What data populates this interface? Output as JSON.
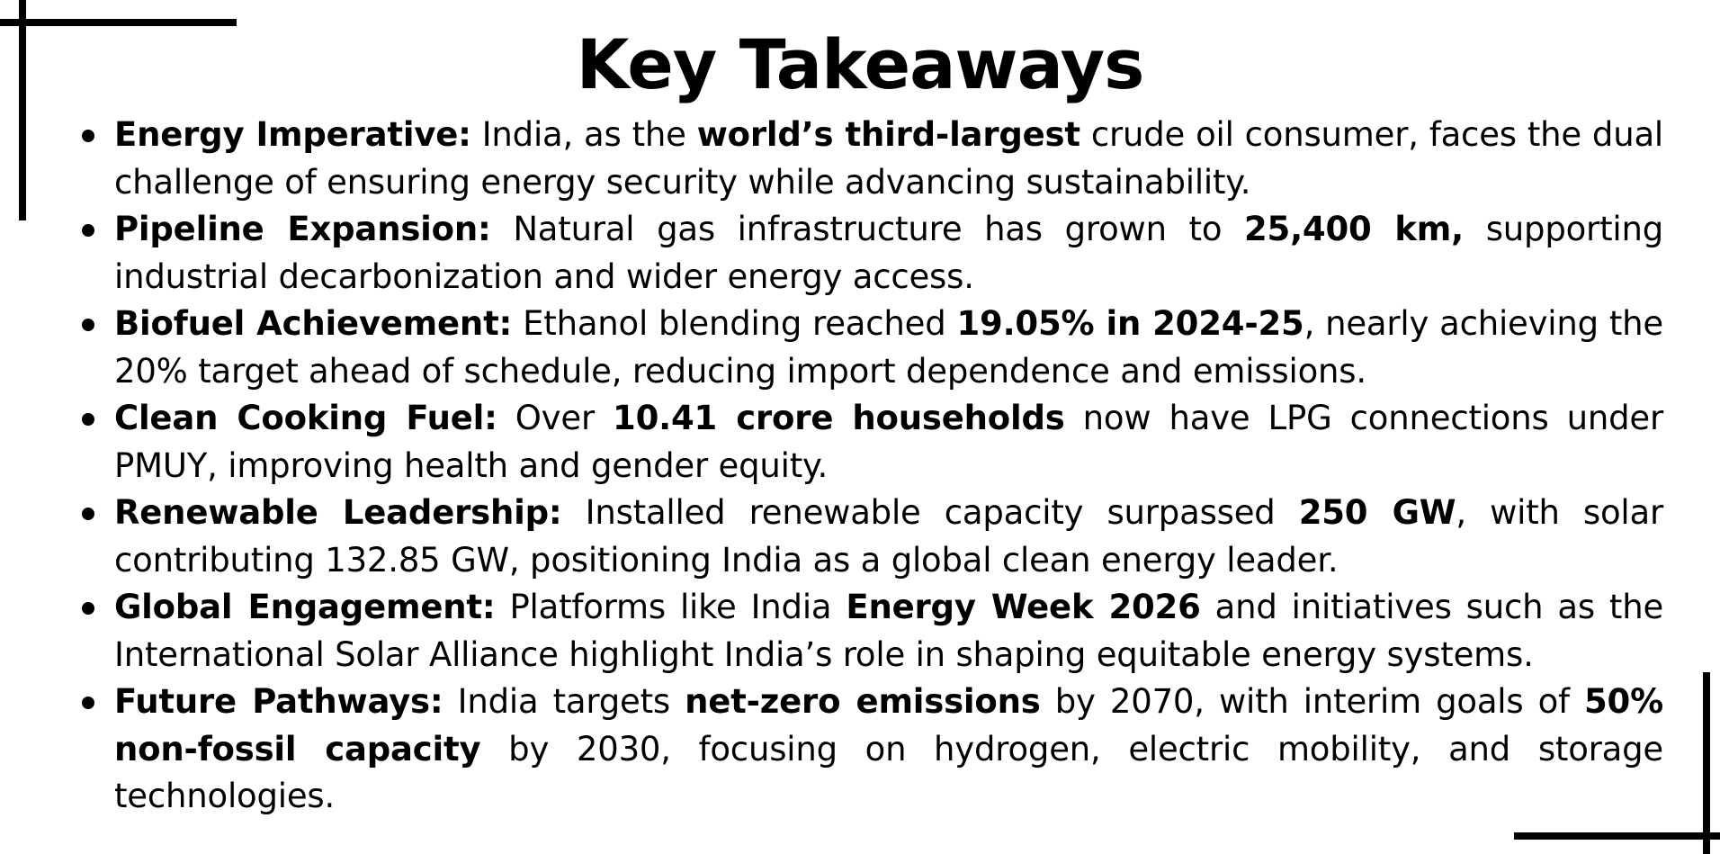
{
  "title": "Key Takeaways",
  "decor": {
    "line_color": "#000000",
    "background": "#ffffff"
  },
  "takeaways": [
    {
      "heading": "Energy Imperative:",
      "t1": " India, as the ",
      "b1": "world’s third-largest",
      "t2": " crude oil consumer, faces the dual challenge of ensuring energy security while advancing sustainability.",
      "b2": "",
      "t3": ""
    },
    {
      "heading": "Pipeline Expansion:",
      "t1": " Natural gas infrastructure has grown to ",
      "b1": "25,400 km,",
      "t2": " supporting industrial decarbonization and wider energy access.",
      "b2": "",
      "t3": ""
    },
    {
      "heading": "Biofuel Achievement:",
      "t1": " Ethanol blending reached ",
      "b1": "19.05% in 2024-25",
      "t2": ", nearly achieving the 20% target ahead of schedule, reducing import dependence and emissions.",
      "b2": "",
      "t3": ""
    },
    {
      "heading": "Clean Cooking Fuel:",
      "t1": " Over ",
      "b1": "10.41 crore households",
      "t2": " now have LPG connections under PMUY, improving health and gender equity.",
      "b2": "",
      "t3": ""
    },
    {
      "heading": "Renewable Leadership:",
      "t1": " Installed renewable capacity surpassed ",
      "b1": "250 GW",
      "t2": ", with solar contributing 132.85 GW, positioning India as a global clean energy leader.",
      "b2": "",
      "t3": ""
    },
    {
      "heading": "Global Engagement:",
      "t1": " Platforms like India ",
      "b1": "Energy Week 2026",
      "t2": " and initiatives such as the International Solar Alliance highlight India’s role in shaping equitable energy systems.",
      "b2": "",
      "t3": ""
    },
    {
      "heading": "Future Pathways:",
      "t1": " India targets ",
      "b1": "net-zero emissions",
      "t2": " by 2070, with interim goals of ",
      "b2": "50% non-fossil capacity",
      "t3": " by 2030, focusing on hydrogen, electric mobility, and storage technologies."
    }
  ]
}
